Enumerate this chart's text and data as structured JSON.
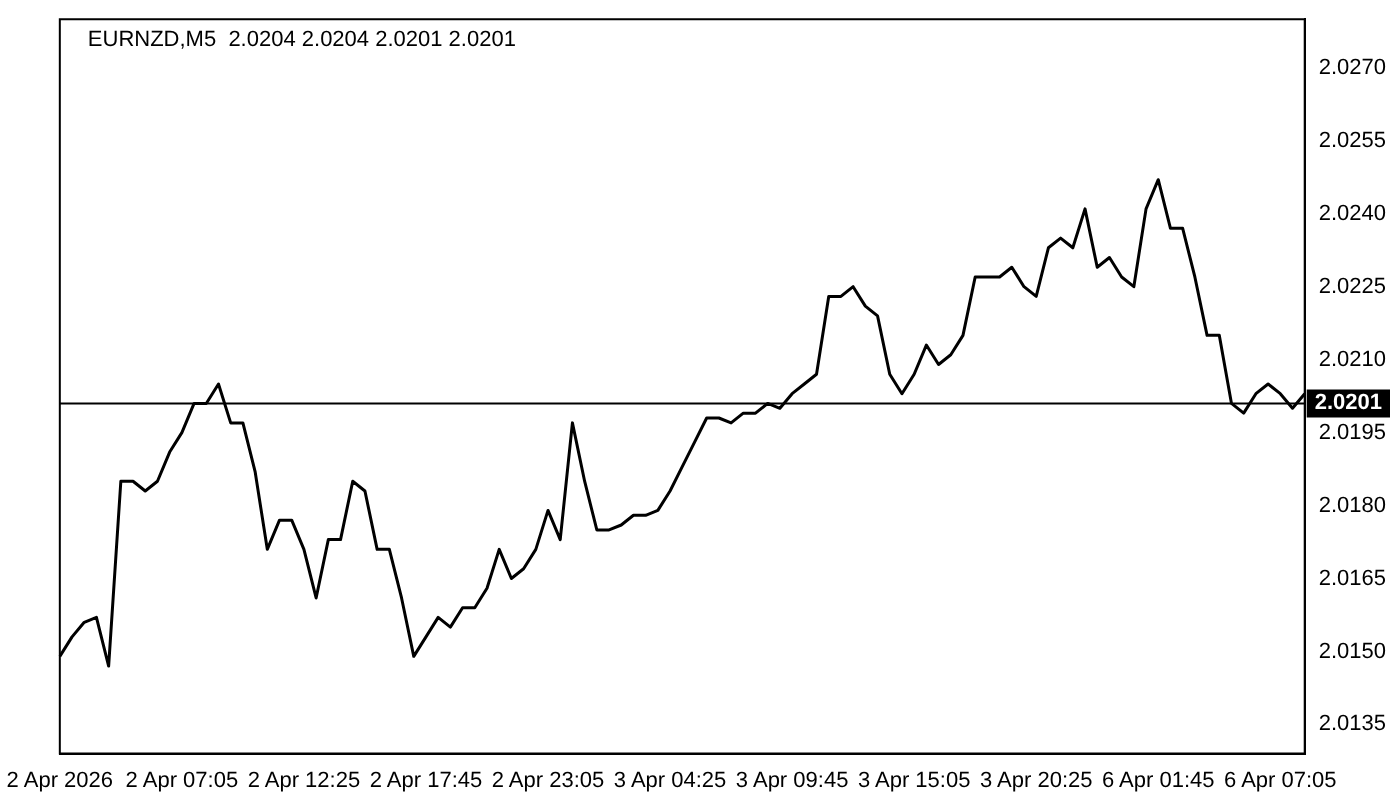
{
  "chart_data": {
    "type": "line",
    "title": "EURNZD,M5  2.0204 2.0204 2.0201 2.0201",
    "categories": [
      "2 Apr 2026",
      null,
      null,
      null,
      null,
      null,
      null,
      null,
      null,
      null,
      "2 Apr 07:05",
      null,
      null,
      null,
      null,
      null,
      null,
      null,
      null,
      null,
      "2 Apr 12:25",
      null,
      null,
      null,
      null,
      null,
      null,
      null,
      null,
      null,
      "2 Apr 17:45",
      null,
      null,
      null,
      null,
      null,
      null,
      null,
      null,
      null,
      "2 Apr 23:05",
      null,
      null,
      null,
      null,
      null,
      null,
      null,
      null,
      null,
      "3 Apr 04:25",
      null,
      null,
      null,
      null,
      null,
      null,
      null,
      null,
      null,
      "3 Apr 09:45",
      null,
      null,
      null,
      null,
      null,
      null,
      null,
      null,
      null,
      "3 Apr 15:05",
      null,
      null,
      null,
      null,
      null,
      null,
      null,
      null,
      null,
      "3 Apr 20:25",
      null,
      null,
      null,
      null,
      null,
      null,
      null,
      null,
      null,
      "6 Apr 01:45",
      null,
      null,
      null,
      null,
      null,
      null,
      null,
      null,
      null,
      "6 Apr 07:05",
      null,
      null
    ],
    "series": [
      {
        "color": "#000000",
        "values": [
          2.0149,
          2.0153,
          2.0156,
          2.0157,
          2.0147,
          2.0185,
          2.0185,
          2.0183,
          2.0185,
          2.0191,
          2.0195,
          2.0201,
          2.0201,
          2.0205,
          2.0197,
          2.0197,
          2.0187,
          2.0171,
          2.0177,
          2.0177,
          2.0171,
          2.0161,
          2.0173,
          2.0173,
          2.0185,
          2.0183,
          2.0171,
          2.0171,
          2.0161,
          2.0149,
          2.0153,
          2.0157,
          2.0155,
          2.0159,
          2.0159,
          2.0163,
          2.0171,
          2.0165,
          2.0167,
          2.0171,
          2.0179,
          2.0173,
          2.0197,
          2.0185,
          2.0175,
          2.0175,
          2.0176,
          2.0178,
          2.0178,
          2.0179,
          2.0183,
          2.0188,
          2.0193,
          2.0198,
          2.0198,
          2.0197,
          2.0199,
          2.0199,
          2.0201,
          2.02,
          2.0203,
          2.0205,
          2.0207,
          2.0223,
          2.0223,
          2.0225,
          2.0221,
          2.0219,
          2.0207,
          2.0203,
          2.0207,
          2.0213,
          2.0209,
          2.0211,
          2.0215,
          2.0227,
          2.0227,
          2.0227,
          2.0229,
          2.0225,
          2.0223,
          2.0233,
          2.0235,
          2.0233,
          2.0241,
          2.0229,
          2.0231,
          2.0227,
          2.0225,
          2.0241,
          2.0247,
          2.0237,
          2.0237,
          2.0227,
          2.0215,
          2.0215,
          2.0201,
          2.0199,
          2.0203,
          2.0205,
          2.0203,
          2.02,
          2.0203
        ]
      }
    ],
    "ylim": [
      2.0129,
      2.028
    ],
    "yticks": [
      {
        "value": 2.0135,
        "label": "2.0135"
      },
      {
        "value": 2.015,
        "label": "2.0150"
      },
      {
        "value": 2.0165,
        "label": "2.0165"
      },
      {
        "value": 2.018,
        "label": "2.0180"
      },
      {
        "value": 2.0195,
        "label": "2.0195"
      },
      {
        "value": 2.021,
        "label": "2.0210"
      },
      {
        "value": 2.0225,
        "label": "2.0225"
      },
      {
        "value": 2.024,
        "label": "2.0240"
      },
      {
        "value": 2.0255,
        "label": "2.0255"
      },
      {
        "value": 2.027,
        "label": "2.0270"
      }
    ],
    "ref_lines": [
      {
        "axis": "y",
        "value": 2.0201,
        "label": "2.0201"
      }
    ],
    "grid": false,
    "legend": false,
    "marker": "none",
    "line_style": "solid"
  }
}
